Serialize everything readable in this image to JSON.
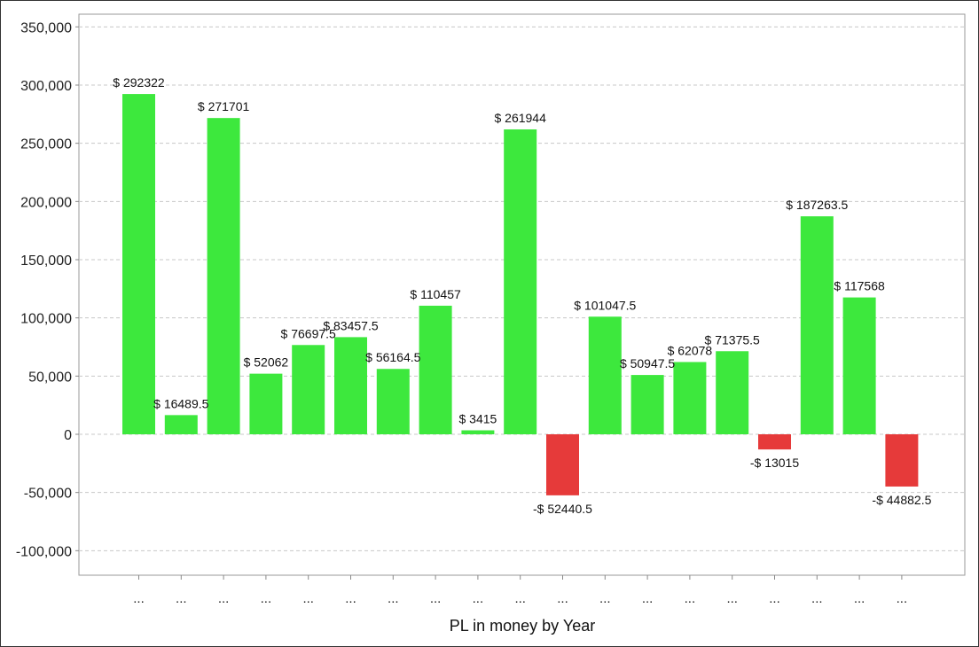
{
  "chart_data": {
    "type": "bar",
    "title": "",
    "xlabel": "PL in money by Year",
    "ylabel": "",
    "ylim": [
      -120000,
      360000
    ],
    "yticks": [
      350000,
      300000,
      250000,
      200000,
      150000,
      100000,
      50000,
      0,
      -50000,
      -100000
    ],
    "ytick_labels": [
      "350,000",
      "300,000",
      "250,000",
      "200,000",
      "150,000",
      "100,000",
      "50,000",
      "0",
      "-50,000",
      "-100,000"
    ],
    "grid": true,
    "legend": "none",
    "categories": [
      "...",
      "...",
      "...",
      "...",
      "...",
      "...",
      "...",
      "...",
      "...",
      "...",
      "...",
      "...",
      "...",
      "...",
      "...",
      "...",
      "...",
      "...",
      "..."
    ],
    "values": [
      292322,
      16489.5,
      271701,
      52062,
      76697.5,
      83457.5,
      56164.5,
      110457,
      3415,
      261944,
      -52440.5,
      101047.5,
      50947.5,
      62078,
      71375.5,
      -13015,
      187263.5,
      117568,
      -44882.5
    ],
    "data_labels": [
      "$ 292322",
      "$ 16489.5",
      "$ 271701",
      "$ 52062",
      "$ 76697.5",
      "$ 83457.5",
      "$ 56164.5",
      "$ 110457",
      "$ 3415",
      "$ 261944",
      "-$ 52440.5",
      "$ 101047.5",
      "$ 50947.5",
      "$ 62078",
      "$ 71375.5",
      "-$ 13015",
      "$ 187263.5",
      "$ 117568",
      "-$ 44882.5"
    ],
    "colors": {
      "positive": "#3de83d",
      "negative": "#e63a3a",
      "grid": "#c8c8c8",
      "axis": "#888888"
    }
  }
}
